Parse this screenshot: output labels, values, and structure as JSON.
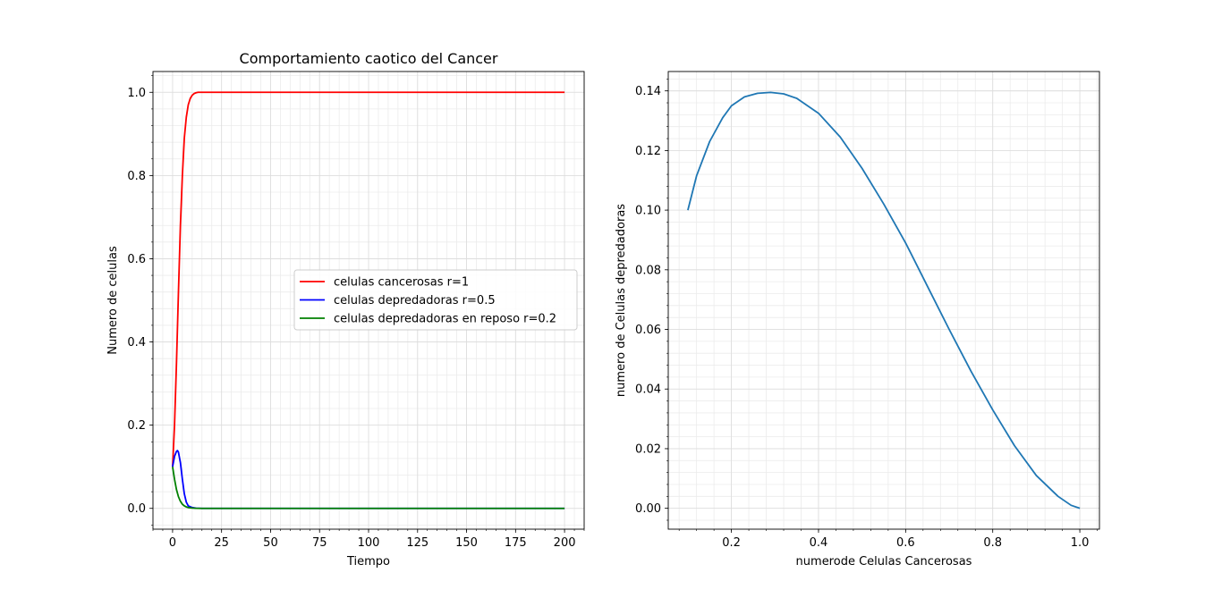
{
  "chart_data": [
    {
      "type": "line",
      "title": "Comportamiento caotico del Cancer",
      "xlabel": "Tiempo",
      "ylabel": "Numero de celulas",
      "xlim": [
        -10,
        210
      ],
      "ylim": [
        -0.05,
        1.05
      ],
      "xticks": [
        0,
        25,
        50,
        75,
        100,
        125,
        150,
        175,
        200
      ],
      "yticks": [
        0.0,
        0.2,
        0.4,
        0.6,
        0.8,
        1.0
      ],
      "xtick_labels": [
        "0",
        "25",
        "50",
        "75",
        "100",
        "125",
        "150",
        "175",
        "200"
      ],
      "ytick_labels": [
        "0.0",
        "0.2",
        "0.4",
        "0.6",
        "0.8",
        "1.0"
      ],
      "grid": true,
      "legend_position": "center-right",
      "series": [
        {
          "name": "celulas cancerosas r=1",
          "color": "#ff0000",
          "x": [
            0,
            1,
            2,
            3,
            4,
            5,
            6,
            7,
            8,
            9,
            10,
            11,
            12,
            13,
            15,
            20,
            30,
            50,
            100,
            150,
            200
          ],
          "y": [
            0.1,
            0.2,
            0.35,
            0.52,
            0.68,
            0.8,
            0.89,
            0.94,
            0.97,
            0.985,
            0.993,
            0.997,
            0.999,
            1.0,
            1.0,
            1.0,
            1.0,
            1.0,
            1.0,
            1.0,
            1.0
          ]
        },
        {
          "name": "celulas depredadoras r=0.5",
          "color": "#0000ff",
          "x": [
            0,
            1,
            2,
            2.5,
            3,
            4,
            5,
            6,
            7,
            8,
            10,
            12,
            15,
            20,
            50,
            100,
            150,
            200
          ],
          "y": [
            0.1,
            0.125,
            0.137,
            0.139,
            0.135,
            0.11,
            0.07,
            0.035,
            0.015,
            0.006,
            0.002,
            0.0005,
            0.0,
            0.0,
            0.0,
            0.0,
            0.0,
            0.0
          ]
        },
        {
          "name": "celulas depredadoras en reposo r=0.2",
          "color": "#008000",
          "x": [
            0,
            1,
            2,
            3,
            4,
            5,
            6,
            7,
            8,
            10,
            12,
            15,
            20,
            50,
            100,
            150,
            200
          ],
          "y": [
            0.1,
            0.07,
            0.045,
            0.028,
            0.017,
            0.01,
            0.006,
            0.0035,
            0.002,
            0.0008,
            0.0003,
            0.0,
            0.0,
            0.0,
            0.0,
            0.0,
            0.0
          ]
        }
      ]
    },
    {
      "type": "line",
      "title": "",
      "xlabel": "numerode Celulas Cancerosas",
      "ylabel": "numero de Celulas depredadoras",
      "xlim": [
        0.055,
        1.045
      ],
      "ylim": [
        -0.007,
        0.1465
      ],
      "xticks": [
        0.2,
        0.4,
        0.6,
        0.8,
        1.0
      ],
      "yticks": [
        0.0,
        0.02,
        0.04,
        0.06,
        0.08,
        0.1,
        0.12,
        0.14
      ],
      "xtick_labels": [
        "0.2",
        "0.4",
        "0.6",
        "0.8",
        "1.0"
      ],
      "ytick_labels": [
        "0.00",
        "0.02",
        "0.04",
        "0.06",
        "0.08",
        "0.10",
        "0.12",
        "0.14"
      ],
      "grid": true,
      "series": [
        {
          "color": "#1f77b4",
          "x": [
            0.1,
            0.12,
            0.15,
            0.18,
            0.2,
            0.23,
            0.26,
            0.29,
            0.32,
            0.35,
            0.4,
            0.45,
            0.5,
            0.55,
            0.6,
            0.65,
            0.7,
            0.75,
            0.8,
            0.85,
            0.9,
            0.95,
            0.98,
            1.0
          ],
          "y": [
            0.1,
            0.1115,
            0.123,
            0.131,
            0.135,
            0.138,
            0.1392,
            0.1395,
            0.139,
            0.1375,
            0.1325,
            0.1245,
            0.114,
            0.102,
            0.089,
            0.0745,
            0.06,
            0.046,
            0.033,
            0.021,
            0.011,
            0.004,
            0.001,
            0.0
          ]
        }
      ]
    }
  ]
}
